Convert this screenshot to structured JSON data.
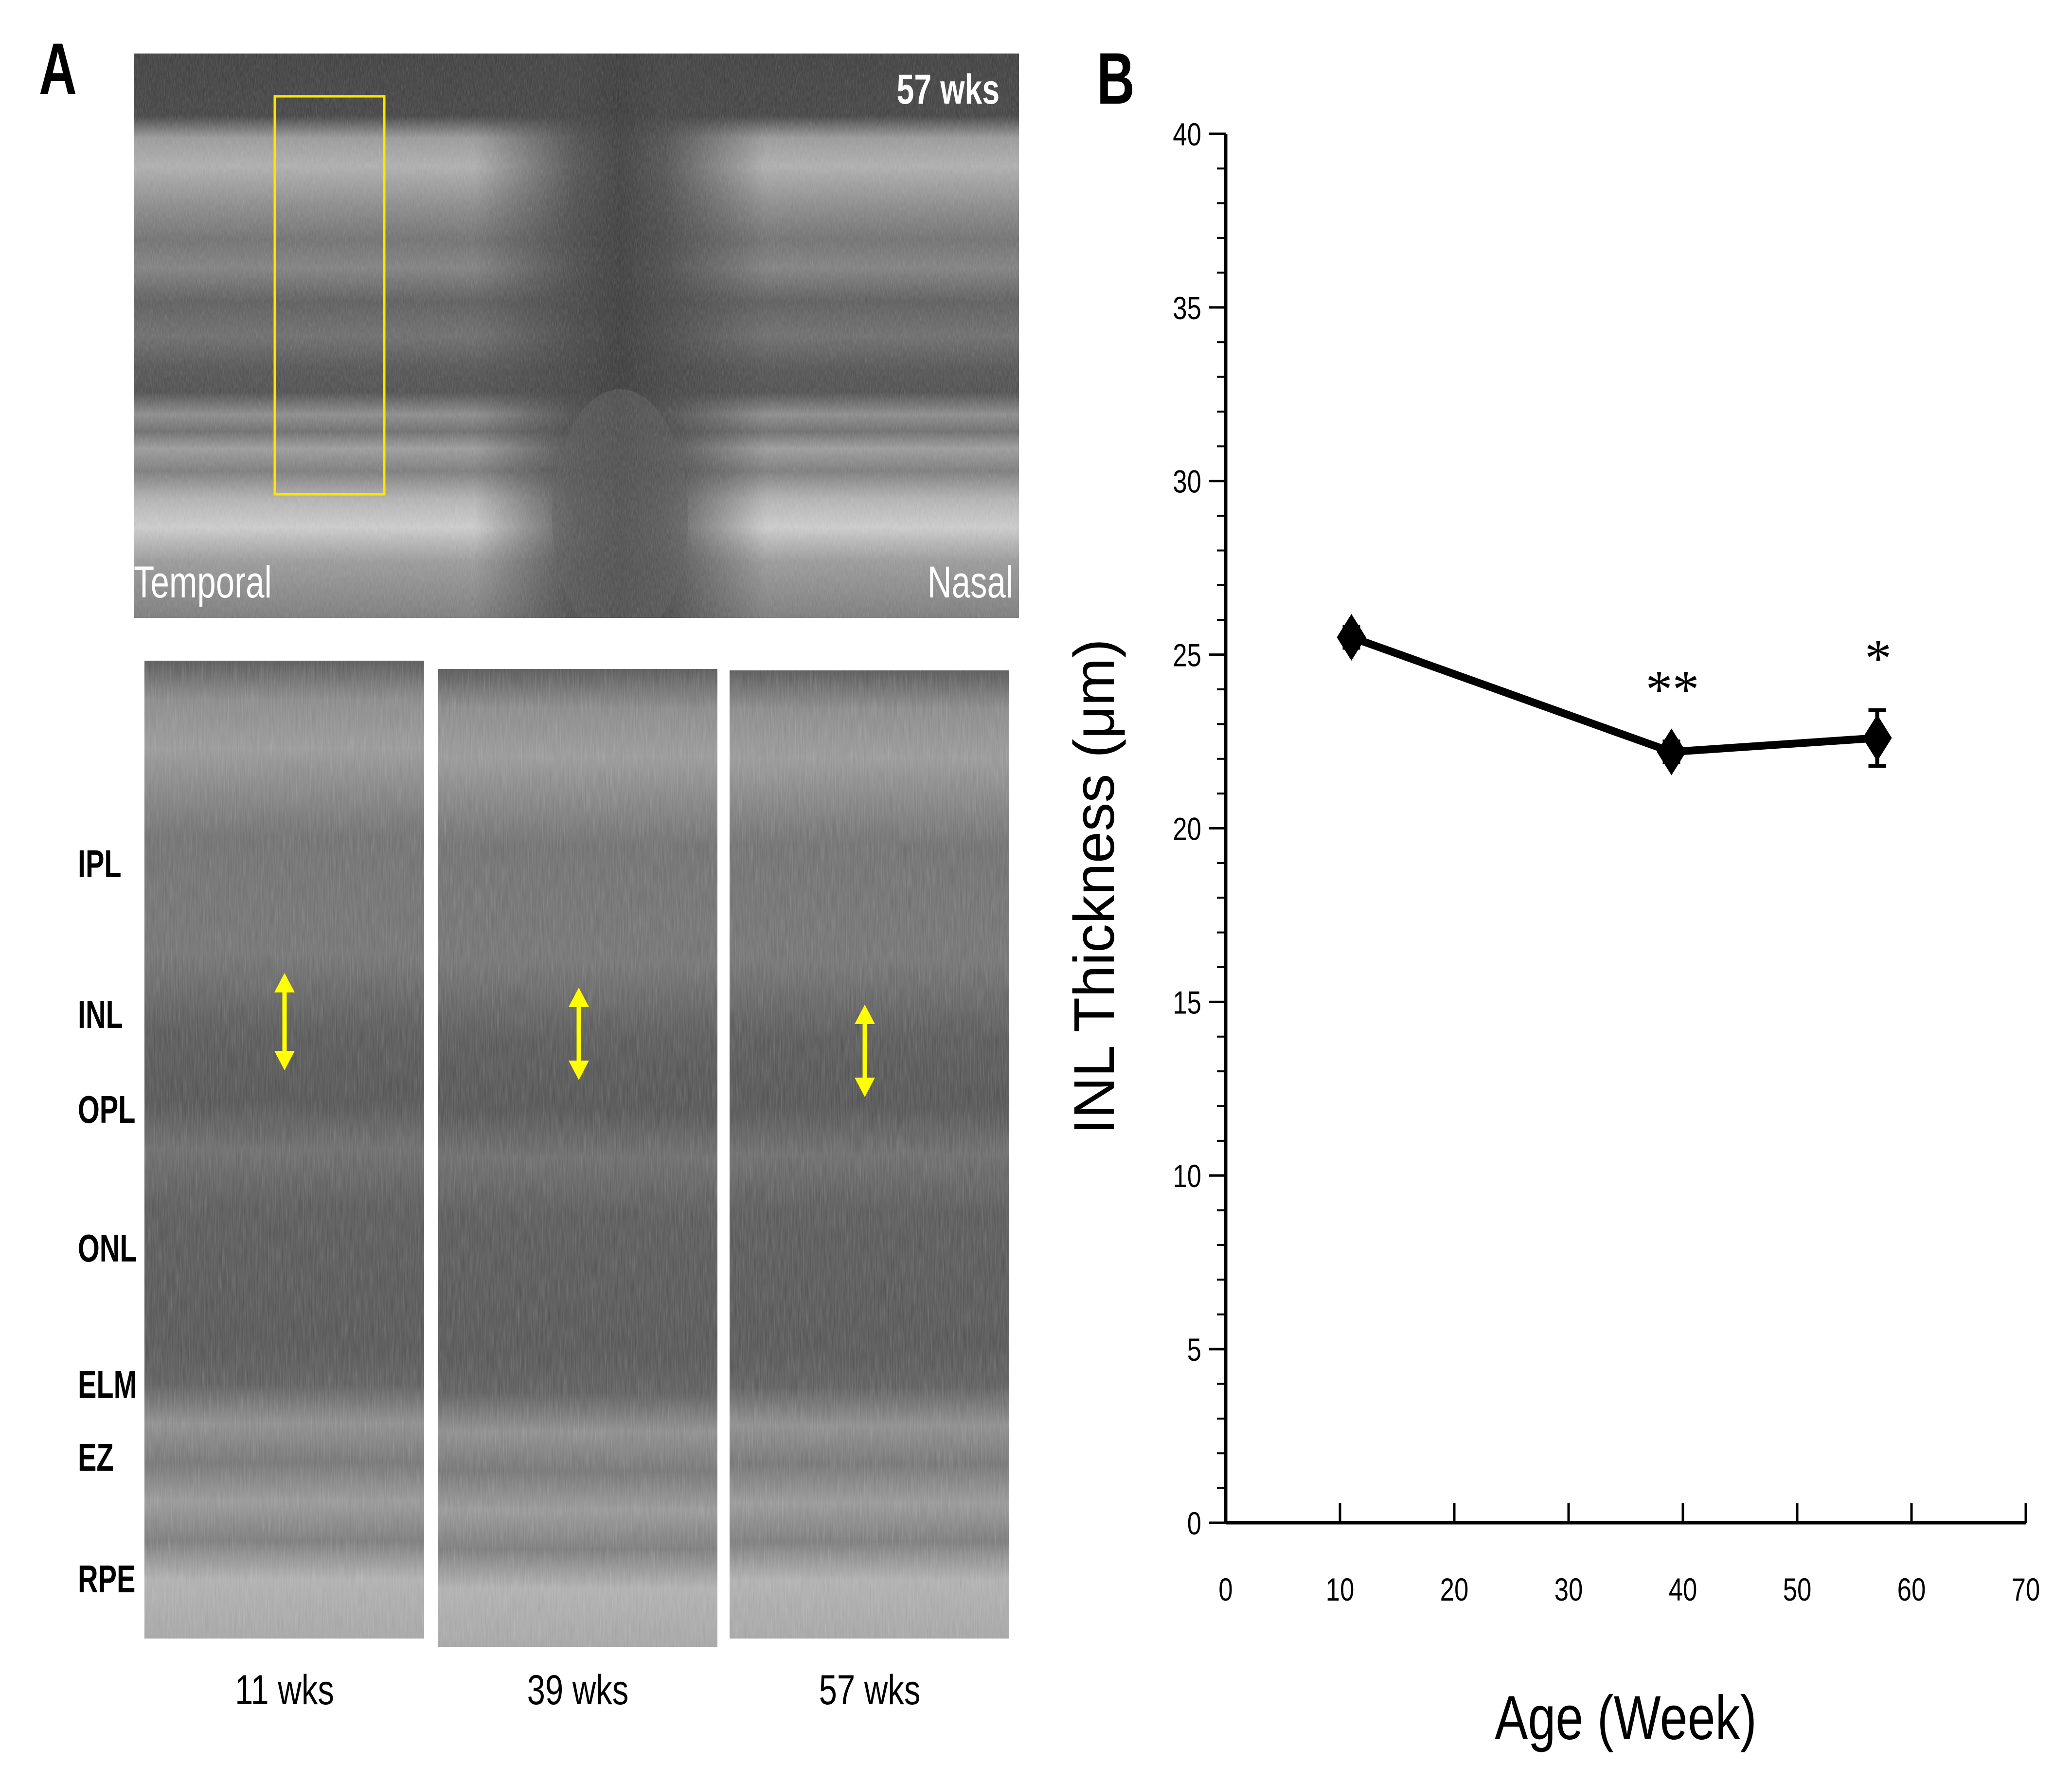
{
  "panel_a": {
    "letter": "A",
    "overview": {
      "timepoint": "57 wks",
      "left_label": "Temporal",
      "right_label": "Nasal",
      "roi_color": "#ffe600"
    },
    "layer_labels": [
      "IPL",
      "INL",
      "OPL",
      "ONL",
      "ELM",
      "EZ",
      "RPE"
    ],
    "crops": [
      {
        "age_label": "11 wks"
      },
      {
        "age_label": "39 wks"
      },
      {
        "age_label": "57 wks"
      }
    ],
    "arrow_color": "#ffff00"
  },
  "panel_b": {
    "letter": "B"
  },
  "chart_data": {
    "type": "line",
    "xlabel": "Age (Week)",
    "ylabel": "INL Thickness (μm)",
    "xlim": [
      0,
      70
    ],
    "ylim": [
      0,
      40
    ],
    "x_ticks": [
      "0",
      "10",
      "20",
      "30",
      "40",
      "50",
      "60",
      "70"
    ],
    "y_ticks": [
      "0",
      "5",
      "10",
      "15",
      "20",
      "25",
      "30",
      "35",
      "40"
    ],
    "x": [
      11,
      39,
      57
    ],
    "y": [
      25.5,
      22.2,
      22.6
    ],
    "error": [
      0.3,
      0.3,
      0.8
    ],
    "annotations": [
      "",
      "**",
      "*"
    ],
    "color": "#000000",
    "grid": false
  }
}
